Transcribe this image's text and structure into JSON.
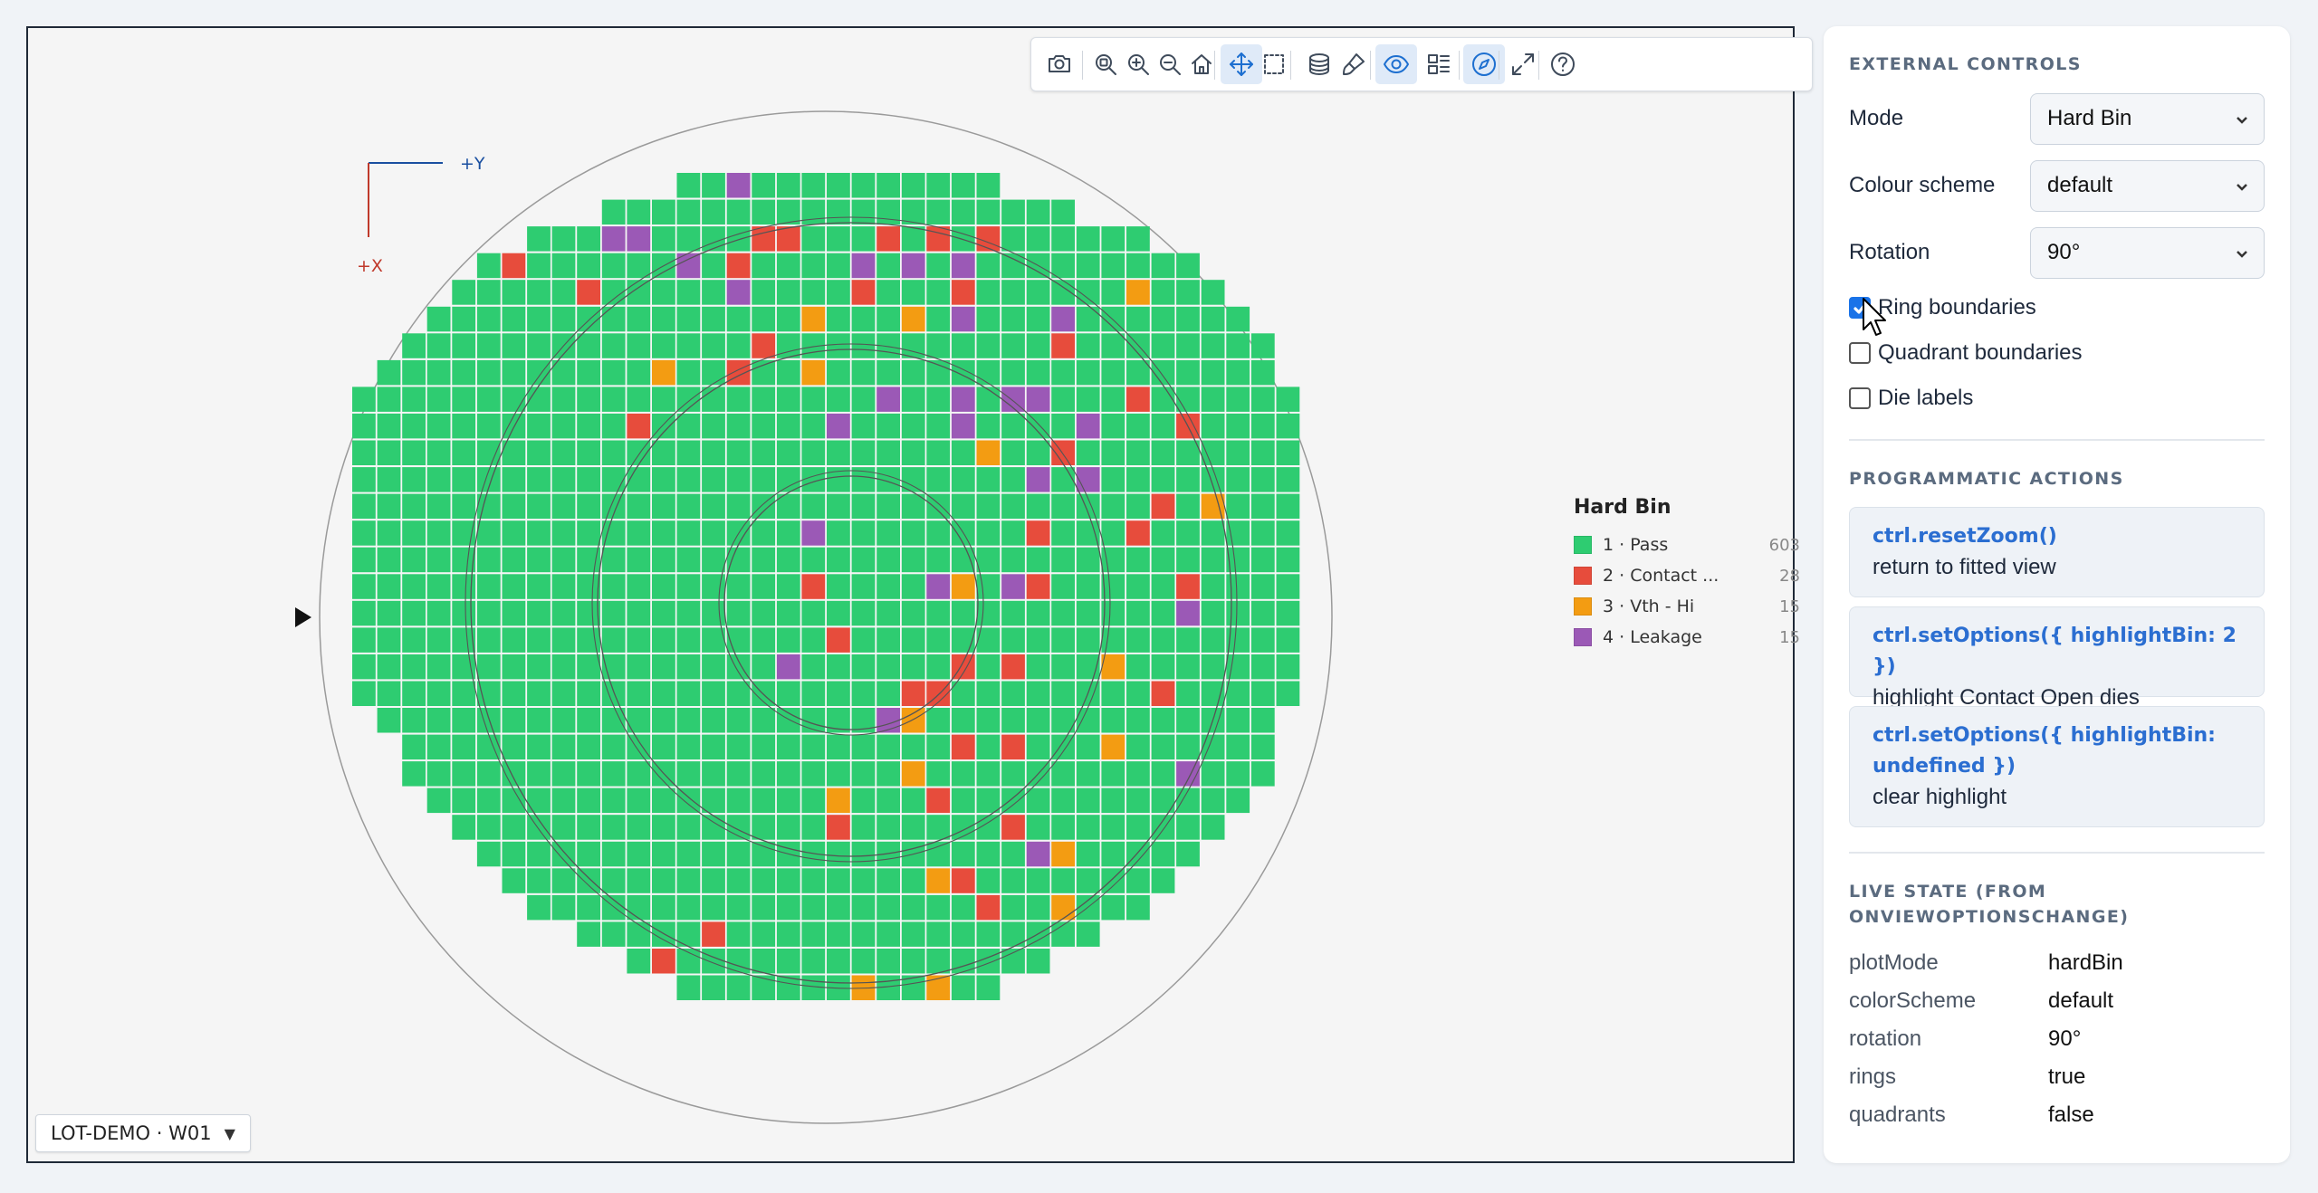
{
  "plot": {
    "toolbar": [
      {
        "name": "camera-icon",
        "icon": "camera",
        "active": false
      },
      {
        "name": "zoom-fit-icon",
        "icon": "zoom-fit",
        "active": false
      },
      {
        "name": "zoom-in-icon",
        "icon": "zoom-in",
        "active": false
      },
      {
        "name": "zoom-out-icon",
        "icon": "zoom-out",
        "active": false
      },
      {
        "name": "home-icon",
        "icon": "home",
        "active": false
      },
      {
        "name": "pan-icon",
        "icon": "pan",
        "active": true
      },
      {
        "name": "box-select-icon",
        "icon": "box-select",
        "active": false
      },
      {
        "name": "layers-icon",
        "icon": "layers",
        "active": false
      },
      {
        "name": "paintbrush-icon",
        "icon": "brush",
        "active": false
      },
      {
        "name": "eye-icon",
        "icon": "eye",
        "active": true
      },
      {
        "name": "list-view-icon",
        "icon": "list",
        "active": false
      },
      {
        "name": "compass-icon",
        "icon": "compass",
        "active": true
      },
      {
        "name": "fullscreen-icon",
        "icon": "expand",
        "active": false
      },
      {
        "name": "help-icon",
        "icon": "help",
        "active": false
      }
    ],
    "axis": {
      "y_label": "+Y",
      "x_label": "+X",
      "y_color": "#1a4fa0",
      "x_color": "#c0392b"
    },
    "wafer_id": "LOT-DEMO · W01",
    "legend": {
      "title": "Hard Bin",
      "items": [
        {
          "label": "1 · Pass",
          "count": "603",
          "color": "#2ecc71"
        },
        {
          "label": "2 · Contact ...",
          "count": "28",
          "color": "#e74c3c"
        },
        {
          "label": "3 · Vth - Hi",
          "count": "15",
          "color": "#f39c12"
        },
        {
          "label": "4 · Leakage",
          "count": "15",
          "color": "#9b59b6"
        }
      ]
    }
  },
  "controls": {
    "heading": "EXTERNAL CONTROLS",
    "mode": {
      "label": "Mode",
      "value": "Hard Bin"
    },
    "colour_scheme": {
      "label": "Colour scheme",
      "value": "default"
    },
    "rotation": {
      "label": "Rotation",
      "value": "90°"
    },
    "ring_boundaries": {
      "label": "Ring boundaries",
      "checked": true
    },
    "quadrant_boundaries": {
      "label": "Quadrant boundaries",
      "checked": false
    },
    "die_labels": {
      "label": "Die labels",
      "checked": false
    }
  },
  "actions": {
    "heading": "PROGRAMMATIC ACTIONS",
    "items": [
      {
        "code": "ctrl.resetZoom()",
        "desc": "return to fitted view"
      },
      {
        "code": "ctrl.setOptions({ highlightBin: 2 })",
        "desc": "highlight Contact Open dies"
      },
      {
        "code": "ctrl.setOptions({ highlightBin: undefined })",
        "desc": "clear highlight"
      }
    ]
  },
  "live_state": {
    "heading": "LIVE STATE (FROM ONVIEWOPTIONSCHANGE)",
    "rows": [
      {
        "key": "plotMode",
        "value": "hardBin"
      },
      {
        "key": "colorScheme",
        "value": "default"
      },
      {
        "key": "rotation",
        "value": "90°"
      },
      {
        "key": "rings",
        "value": "true"
      },
      {
        "key": "quadrants",
        "value": "false"
      }
    ]
  }
}
